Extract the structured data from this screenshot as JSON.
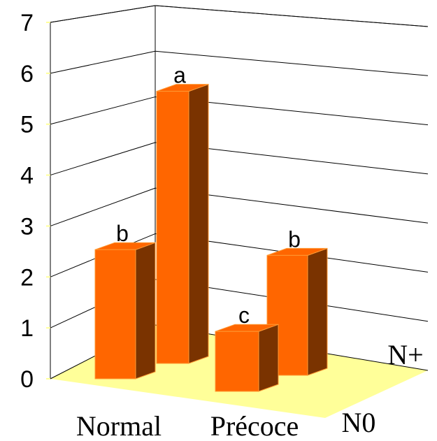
{
  "chart_data": {
    "type": "bar",
    "subtype": "3d-clustered",
    "title": "",
    "xlabel": "",
    "ylabel": "",
    "ylim": [
      0,
      7
    ],
    "yticks": [
      "0",
      "1",
      "2",
      "3",
      "4",
      "5",
      "6",
      "7"
    ],
    "categories": [
      "Normal",
      "Précoce"
    ],
    "depth_labels": [
      "N0",
      "N+"
    ],
    "series": [
      {
        "depth": "N0",
        "values": [
          2.8,
          1.3
        ],
        "labels": [
          "b",
          "c"
        ]
      },
      {
        "depth": "N+",
        "values": [
          5.9,
          2.6
        ],
        "labels": [
          "a",
          "b"
        ]
      }
    ],
    "grid": true,
    "colors": {
      "bar_front": "#ff6600",
      "bar_side": "#7a3300",
      "bar_top": "#ff6600",
      "bar_edge": "#ff9933",
      "floor": "#ffff99",
      "grid": "#000000"
    }
  }
}
